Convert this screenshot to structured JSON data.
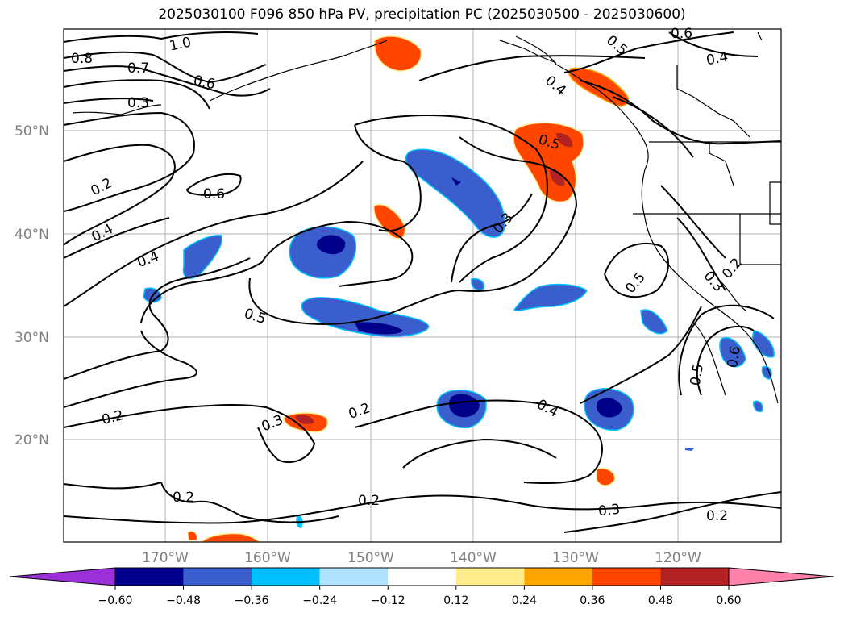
{
  "title": "2025030100 F096 850 hPa PV, precipitation PC (2025030500 - 2025030600)",
  "lat_labels": [
    "50°N",
    "40°N",
    "30°N",
    "20°N"
  ],
  "lon_labels": [
    "170°W",
    "160°W",
    "150°W",
    "140°W",
    "130°W",
    "120°W"
  ],
  "contour_labels": [
    {
      "text": "1.0"
    },
    {
      "text": "0.8"
    },
    {
      "text": "0.7"
    },
    {
      "text": "0.6"
    },
    {
      "text": "0.3"
    },
    {
      "text": "0.2"
    },
    {
      "text": "0.6"
    },
    {
      "text": "0.4"
    },
    {
      "text": "0.4"
    },
    {
      "text": "0.5"
    },
    {
      "text": "0.2"
    },
    {
      "text": "0.3"
    },
    {
      "text": "0.2"
    },
    {
      "text": "0.2"
    },
    {
      "text": "0.2"
    },
    {
      "text": "0.4"
    },
    {
      "text": "0.3"
    },
    {
      "text": "0.2"
    },
    {
      "text": "0.5"
    },
    {
      "text": "0.3"
    },
    {
      "text": "0.5"
    },
    {
      "text": "0.5"
    },
    {
      "text": "0.4"
    },
    {
      "text": "0.6"
    },
    {
      "text": "0.3"
    },
    {
      "text": "0.2"
    },
    {
      "text": "0.5"
    },
    {
      "text": "0.4"
    },
    {
      "text": "0.6"
    }
  ],
  "colorbar": {
    "colors": [
      "#9b30d9",
      "#00008b",
      "#3a5fcd",
      "#00bfff",
      "#b0e2ff",
      "#ffffff",
      "#ffec8b",
      "#ffa500",
      "#ff4500",
      "#b22222",
      "#ff82ab"
    ],
    "ticks": [
      "−0.60",
      "−0.48",
      "−0.36",
      "−0.24",
      "−0.12",
      "0.12",
      "0.24",
      "0.36",
      "0.48",
      "0.60"
    ]
  },
  "shading_colors": {
    "deep_blue": "#00008b",
    "mid_blue": "#3a5fcd",
    "light_blue": "#00bfff",
    "pale_blue": "#b0e2ff",
    "yellow": "#ffec8b",
    "orange": "#ffa500",
    "red_orange": "#ff4500",
    "dark_red": "#b22222"
  }
}
